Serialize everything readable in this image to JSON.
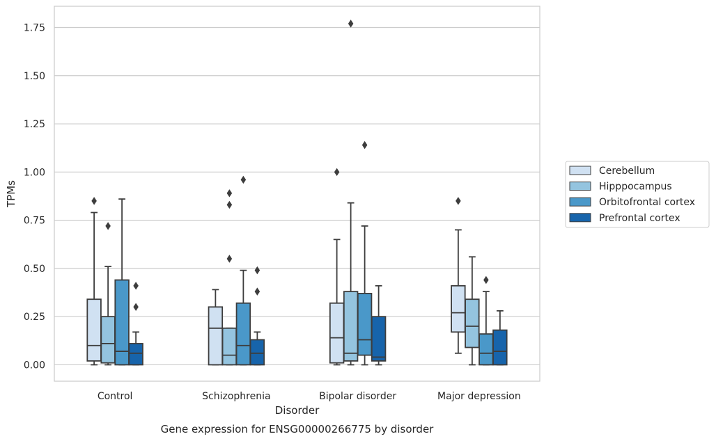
{
  "chart_data": {
    "type": "box",
    "caption": "Gene expression for ENSG00000266775 by disorder",
    "xlabel": "Disorder",
    "ylabel": "TPMs",
    "ylim": [
      -0.085,
      1.86
    ],
    "yticks": [
      0.0,
      0.25,
      0.5,
      0.75,
      1.0,
      1.25,
      1.5,
      1.75
    ],
    "ytick_labels": [
      "0.00",
      "0.25",
      "0.50",
      "0.75",
      "1.00",
      "1.25",
      "1.50",
      "1.75"
    ],
    "grid": true,
    "legend_position": "right",
    "categories": [
      "Control",
      "Schizophrenia",
      "Bipolar disorder",
      "Major depression"
    ],
    "series": [
      {
        "name": "Cerebellum",
        "color": "#d0e1f2",
        "boxes": [
          {
            "whisker_low": 0.0,
            "q1": 0.02,
            "median": 0.1,
            "q3": 0.34,
            "whisker_high": 0.79,
            "outliers": [
              0.85
            ]
          },
          {
            "whisker_low": 0.0,
            "q1": 0.0,
            "median": 0.19,
            "q3": 0.3,
            "whisker_high": 0.39,
            "outliers": []
          },
          {
            "whisker_low": 0.0,
            "q1": 0.01,
            "median": 0.14,
            "q3": 0.32,
            "whisker_high": 0.65,
            "outliers": [
              1.0
            ]
          },
          {
            "whisker_low": 0.06,
            "q1": 0.17,
            "median": 0.27,
            "q3": 0.41,
            "whisker_high": 0.7,
            "outliers": [
              0.85
            ]
          }
        ]
      },
      {
        "name": "Hipppocampus",
        "color": "#94c4df",
        "boxes": [
          {
            "whisker_low": 0.0,
            "q1": 0.01,
            "median": 0.11,
            "q3": 0.25,
            "whisker_high": 0.51,
            "outliers": [
              0.72
            ]
          },
          {
            "whisker_low": 0.0,
            "q1": 0.0,
            "median": 0.05,
            "q3": 0.19,
            "whisker_high": 0.19,
            "outliers": [
              0.55,
              0.83,
              0.89
            ]
          },
          {
            "whisker_low": 0.0,
            "q1": 0.02,
            "median": 0.06,
            "q3": 0.38,
            "whisker_high": 0.84,
            "outliers": [
              1.77
            ]
          },
          {
            "whisker_low": 0.0,
            "q1": 0.09,
            "median": 0.2,
            "q3": 0.34,
            "whisker_high": 0.56,
            "outliers": []
          }
        ]
      },
      {
        "name": "Orbitofrontal cortex",
        "color": "#4a98c9",
        "boxes": [
          {
            "whisker_low": 0.0,
            "q1": 0.0,
            "median": 0.07,
            "q3": 0.44,
            "whisker_high": 0.86,
            "outliers": []
          },
          {
            "whisker_low": 0.0,
            "q1": 0.0,
            "median": 0.1,
            "q3": 0.32,
            "whisker_high": 0.49,
            "outliers": [
              0.96
            ]
          },
          {
            "whisker_low": 0.0,
            "q1": 0.05,
            "median": 0.13,
            "q3": 0.37,
            "whisker_high": 0.72,
            "outliers": [
              1.14
            ]
          },
          {
            "whisker_low": 0.0,
            "q1": 0.0,
            "median": 0.06,
            "q3": 0.16,
            "whisker_high": 0.38,
            "outliers": [
              0.44
            ]
          }
        ]
      },
      {
        "name": "Prefrontal cortex",
        "color": "#1764ab",
        "boxes": [
          {
            "whisker_low": 0.0,
            "q1": 0.0,
            "median": 0.06,
            "q3": 0.11,
            "whisker_high": 0.17,
            "outliers": [
              0.3,
              0.41
            ]
          },
          {
            "whisker_low": 0.0,
            "q1": 0.0,
            "median": 0.06,
            "q3": 0.13,
            "whisker_high": 0.17,
            "outliers": [
              0.38,
              0.49
            ]
          },
          {
            "whisker_low": 0.0,
            "q1": 0.02,
            "median": 0.04,
            "q3": 0.25,
            "whisker_high": 0.41,
            "outliers": []
          },
          {
            "whisker_low": 0.0,
            "q1": 0.0,
            "median": 0.07,
            "q3": 0.18,
            "whisker_high": 0.28,
            "outliers": []
          }
        ]
      }
    ]
  }
}
